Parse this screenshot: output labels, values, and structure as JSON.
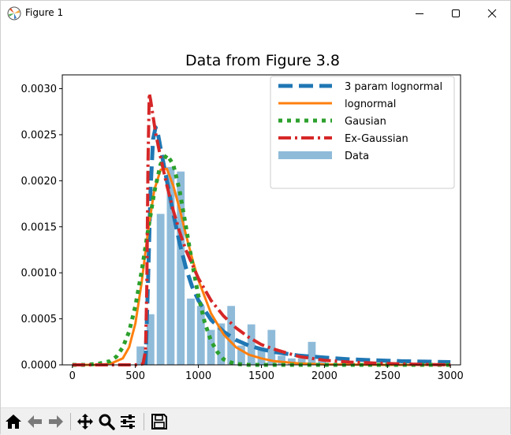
{
  "window": {
    "title": "Figure 1",
    "icons": {
      "app": "matplotlib-icon",
      "minimize": "minimize-icon",
      "maximize": "maximize-icon",
      "close": "close-icon"
    }
  },
  "toolbar": {
    "buttons": [
      {
        "name": "home-icon"
      },
      {
        "name": "back-arrow-icon"
      },
      {
        "name": "forward-arrow-icon"
      },
      {
        "name": "pan-icon"
      },
      {
        "name": "zoom-icon"
      },
      {
        "name": "configure-subplots-icon"
      },
      {
        "name": "save-icon"
      }
    ]
  },
  "colors": {
    "lognormal3": "#1f77b4",
    "lognormal": "#ff7f0e",
    "gaussian": "#2ca02c",
    "exgauss": "#d62728",
    "bars": "#8fbbd9"
  },
  "chart_data": {
    "type": "bar",
    "title": "Data from Figure 3.8",
    "xlabel": "",
    "ylabel": "",
    "xlim": [
      -80,
      3080
    ],
    "ylim": [
      0,
      0.00315
    ],
    "xticks": [
      0,
      500,
      1000,
      1500,
      2000,
      2500,
      3000
    ],
    "xtick_labels": [
      "0",
      "500",
      "1000",
      "1500",
      "2000",
      "2500",
      "3000"
    ],
    "yticks": [
      0,
      0.0005,
      0.001,
      0.0015,
      0.002,
      0.0025,
      0.003
    ],
    "ytick_labels": [
      "0.0000",
      "0.0005",
      "0.0010",
      "0.0015",
      "0.0020",
      "0.0025",
      "0.0030"
    ],
    "legend_position": "upper-right",
    "bars": {
      "name": "Data",
      "bin_width": 80,
      "x": [
        500,
        580,
        660,
        740,
        820,
        900,
        980,
        1060,
        1140,
        1220,
        1300,
        1380,
        1460,
        1540,
        1620,
        1700,
        1780,
        1860,
        1940
      ],
      "values": [
        0.0002,
        0.00055,
        0.00164,
        0.00215,
        0.0021,
        0.00072,
        0.00064,
        0.00038,
        0.00045,
        0.00064,
        0.00021,
        0.00044,
        0.00016,
        0.00038,
        0.0001,
        7e-05,
        7e-05,
        0.00025,
        7e-05
      ]
    },
    "series": [
      {
        "name": "3 param lognormal",
        "style": "dashed",
        "x": [
          580,
          600,
          620,
          640,
          660,
          680,
          700,
          750,
          800,
          850,
          900,
          950,
          1000,
          1100,
          1200,
          1300,
          1400,
          1500,
          1600,
          1800,
          2000,
          2200,
          2400,
          2600,
          2800,
          3000
        ],
        "values": [
          0,
          0.0009,
          0.0019,
          0.00245,
          0.00258,
          0.0025,
          0.00235,
          0.002,
          0.00165,
          0.00133,
          0.00106,
          0.00085,
          0.0007,
          0.00049,
          0.00036,
          0.00027,
          0.00021,
          0.00017,
          0.00014,
          0.0001,
          8e-05,
          6e-05,
          5e-05,
          4e-05,
          3.5e-05,
          3e-05
        ]
      },
      {
        "name": "lognormal",
        "style": "solid",
        "x": [
          0,
          200,
          300,
          400,
          450,
          500,
          550,
          600,
          650,
          700,
          750,
          800,
          850,
          900,
          950,
          1000,
          1100,
          1200,
          1300,
          1400,
          1500,
          1600,
          1800,
          2000,
          2500,
          3000
        ],
        "values": [
          0,
          0,
          1e-05,
          7e-05,
          0.00019,
          0.00045,
          0.0009,
          0.00145,
          0.0019,
          0.00212,
          0.00213,
          0.00195,
          0.0017,
          0.00142,
          0.00116,
          0.00092,
          0.00056,
          0.00033,
          0.00019,
          0.00011,
          7e-05,
          4e-05,
          1.5e-05,
          5e-06,
          0,
          0
        ]
      },
      {
        "name": "Gausian",
        "style": "dotted",
        "x": [
          0,
          100,
          200,
          300,
          350,
          400,
          450,
          500,
          550,
          600,
          650,
          700,
          750,
          800,
          850,
          900,
          950,
          1000,
          1050,
          1100,
          1150,
          1200,
          1250,
          1300,
          1400,
          1600,
          2000,
          3000
        ],
        "values": [
          0,
          0,
          1e-05,
          4e-05,
          9e-05,
          0.00019,
          0.00036,
          0.00064,
          0.00102,
          0.00146,
          0.00188,
          0.00218,
          0.00228,
          0.00218,
          0.0019,
          0.00151,
          0.00111,
          0.00075,
          0.00046,
          0.00026,
          0.00014,
          6e-05,
          3e-05,
          1e-05,
          0,
          0,
          0,
          0
        ]
      },
      {
        "name": "Ex-Gaussian",
        "style": "dashdot",
        "x": [
          0,
          500,
          560,
          580,
          590,
          600,
          610,
          620,
          640,
          660,
          700,
          750,
          800,
          850,
          900,
          1000,
          1100,
          1200,
          1300,
          1400,
          1500,
          1600,
          1800,
          2000,
          2200,
          2400,
          2600,
          3000
        ],
        "values": [
          0,
          0,
          1e-05,
          0.00015,
          0.0008,
          0.0022,
          0.00295,
          0.00288,
          0.0027,
          0.00252,
          0.00225,
          0.00195,
          0.00168,
          0.00145,
          0.00125,
          0.00094,
          0.0007,
          0.00053,
          0.0004,
          0.0003,
          0.00022,
          0.00017,
          9e-05,
          5e-05,
          3e-05,
          2e-05,
          1e-05,
          0
        ]
      }
    ]
  }
}
